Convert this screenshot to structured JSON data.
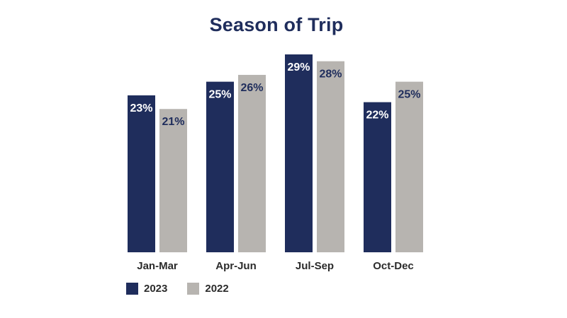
{
  "chart_data": {
    "type": "bar",
    "title": "Season of Trip",
    "categories": [
      "Jan-Mar",
      "Apr-Jun",
      "Jul-Sep",
      "Oct-Dec"
    ],
    "series": [
      {
        "name": "2023",
        "values": [
          23,
          25,
          29,
          22
        ],
        "labels": [
          "23%",
          "25%",
          "29%",
          "22%"
        ],
        "color": "#1f2d5c"
      },
      {
        "name": "2022",
        "values": [
          21,
          26,
          28,
          25
        ],
        "labels": [
          "21%",
          "26%",
          "28%",
          "25%"
        ],
        "color": "#b7b4b0"
      }
    ],
    "label_colors": {
      "2023": "#ffffff",
      "2022": "#1f2d5c"
    },
    "ylim": [
      0,
      29
    ],
    "grid": false,
    "legend": "bottom-left"
  }
}
